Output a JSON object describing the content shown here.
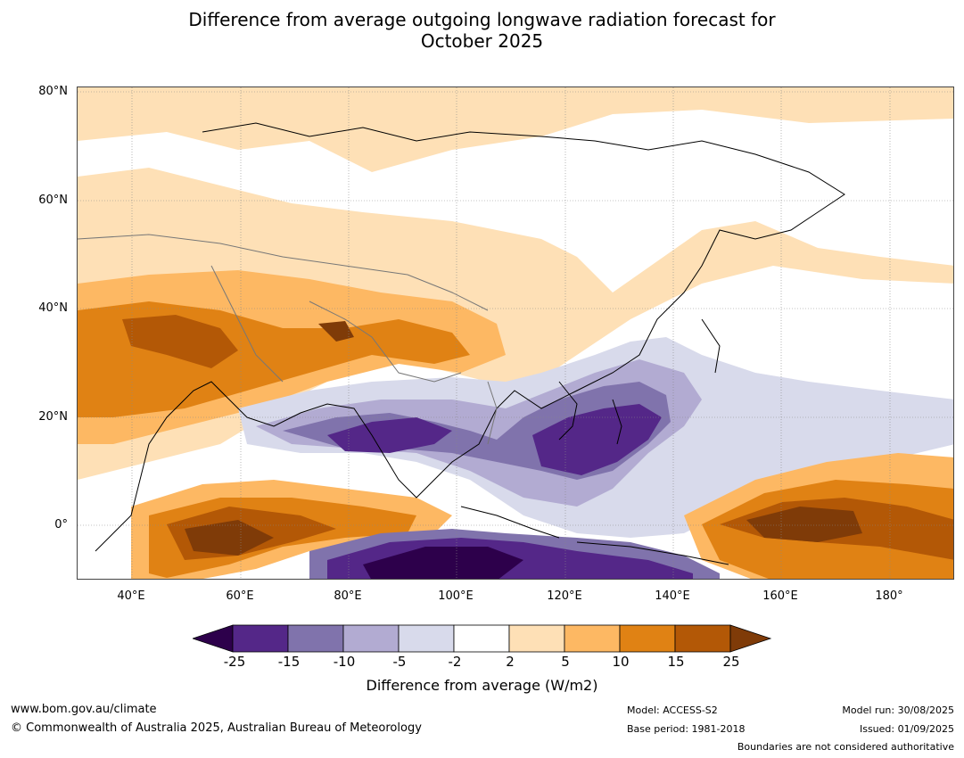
{
  "title": {
    "line1": "Difference from average outgoing longwave radiation forecast for",
    "line2": "October 2025"
  },
  "map": {
    "lat_labels": [
      "80°N",
      "60°N",
      "40°N",
      "20°N",
      "0°"
    ],
    "lon_labels": [
      "40°E",
      "60°E",
      "80°E",
      "100°E",
      "120°E",
      "140°E",
      "160°E",
      "180°"
    ]
  },
  "colorbar": {
    "ticks": [
      "-25",
      "-15",
      "-10",
      "-5",
      "-2",
      "2",
      "5",
      "10",
      "15",
      "25"
    ],
    "colors": [
      "#2d004b",
      "#542788",
      "#8073ac",
      "#b2abd2",
      "#d8daeb",
      "#ffffff",
      "#fee0b6",
      "#fdb863",
      "#e08214",
      "#b35806",
      "#7f3b08"
    ],
    "label": "Difference from average (W/m2)"
  },
  "footer": {
    "website": "www.bom.gov.au/climate",
    "copyright": "© Commonwealth of Australia 2025, Australian Bureau of Meteorology",
    "model": "Model: ACCESS-S2",
    "base_period": "Base period: 1981-2018",
    "model_run": "Model run: 30/08/2025",
    "issued": "Issued: 01/09/2025",
    "disclaimer": "Boundaries are not considered authoritative"
  }
}
